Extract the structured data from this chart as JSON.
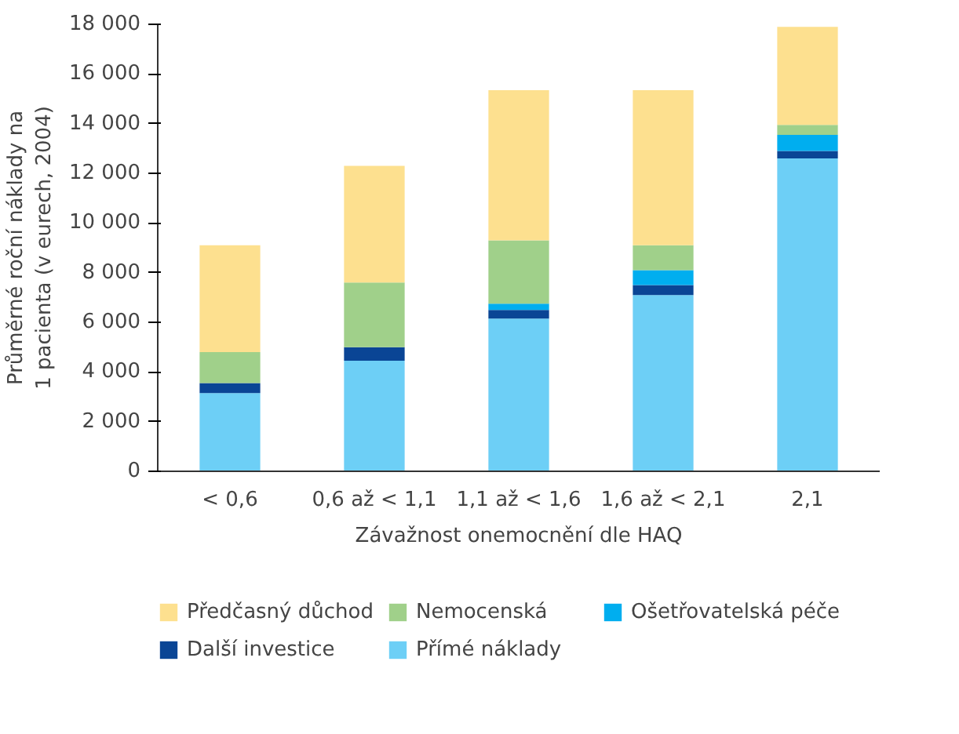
{
  "chart_data": {
    "type": "bar",
    "stacked": true,
    "xlabel": "Závažnost onemocnění dle HAQ",
    "ylabel": "Průměrné roční náklady na 1 pacienta (v eurech, 2004)",
    "categories": [
      "< 0,6",
      "0,6 až < 1,1",
      "1,1 až < 1,6",
      "1,6 až < 2,1",
      "2,1"
    ],
    "series": [
      {
        "name": "Přímé náklady",
        "color": "#6dcff6",
        "values": [
          3150,
          4450,
          6150,
          7100,
          12600
        ]
      },
      {
        "name": "Další investice",
        "color": "#0a4595",
        "values": [
          400,
          550,
          350,
          400,
          300
        ]
      },
      {
        "name": "Ošetřovatelská péče",
        "color": "#00aeef",
        "values": [
          0,
          0,
          250,
          600,
          650
        ]
      },
      {
        "name": "Nemocenská",
        "color": "#a0d08a",
        "values": [
          1250,
          2600,
          2550,
          1000,
          400
        ]
      },
      {
        "name": "Předčasný důchod",
        "color": "#fde08f",
        "values": [
          4300,
          4700,
          6050,
          6250,
          3950
        ]
      }
    ],
    "ylim": [
      0,
      18000
    ],
    "yticks": [
      {
        "value": 0,
        "label": "0"
      },
      {
        "value": 2000,
        "label": "2 000"
      },
      {
        "value": 4000,
        "label": "4 000"
      },
      {
        "value": 6000,
        "label": "6 000"
      },
      {
        "value": 8000,
        "label": "8 000"
      },
      {
        "value": 10000,
        "label": "10 000"
      },
      {
        "value": 12000,
        "label": "12 000"
      },
      {
        "value": 14000,
        "label": "14 000"
      },
      {
        "value": 16000,
        "label": "16 000"
      },
      {
        "value": 18000,
        "label": "18 000"
      }
    ],
    "grid": false,
    "legend": "bottom"
  }
}
